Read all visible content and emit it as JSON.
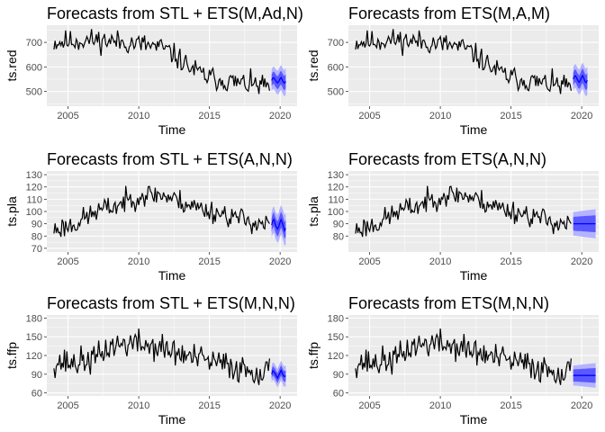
{
  "colors": {
    "panel_bg": "#ebebeb",
    "grid": "#ffffff",
    "series": "#000000",
    "forecast": "#0000ff",
    "band80": "#5959ff",
    "band95": "#b3b3ff"
  },
  "chart_data": [
    {
      "type": "line",
      "title": "Forecasts from STL +  ETS(M,Ad,N)",
      "xlabel": "Time",
      "ylabel": "ts.red",
      "xlim": [
        2003.5,
        2021.2
      ],
      "ylim": [
        440,
        770
      ],
      "xticks": [
        2005,
        2010,
        2015,
        2020
      ],
      "yticks": [
        500,
        600,
        700
      ],
      "grid": true,
      "legend": "none",
      "level_points": [
        [
          2004.0,
          700
        ],
        [
          2005.5,
          705
        ],
        [
          2007.0,
          710
        ],
        [
          2009.0,
          700
        ],
        [
          2010.5,
          690
        ],
        [
          2011.8,
          675
        ],
        [
          2012.8,
          635
        ],
        [
          2013.8,
          590
        ],
        [
          2014.8,
          560
        ],
        [
          2016.0,
          545
        ],
        [
          2017.0,
          535
        ],
        [
          2018.0,
          528
        ],
        [
          2019.3,
          520
        ]
      ],
      "noise": 40,
      "seed": 11,
      "forecast": {
        "start": 2019.4,
        "end": 2020.4,
        "mean": 545,
        "lo80": 30,
        "hi80": 30,
        "lo95": 55,
        "hi95": 55,
        "wiggle": 12
      }
    },
    {
      "type": "line",
      "title": "Forecasts from ETS(M,A,M)",
      "xlabel": "Time",
      "ylabel": "ts.red",
      "xlim": [
        2003.5,
        2021.2
      ],
      "ylim": [
        440,
        770
      ],
      "xticks": [
        2005,
        2010,
        2015,
        2020
      ],
      "yticks": [
        500,
        600,
        700
      ],
      "grid": true,
      "legend": "none",
      "level_points": [
        [
          2004.0,
          700
        ],
        [
          2005.5,
          705
        ],
        [
          2007.0,
          710
        ],
        [
          2009.0,
          700
        ],
        [
          2010.5,
          690
        ],
        [
          2011.8,
          675
        ],
        [
          2012.8,
          635
        ],
        [
          2013.8,
          590
        ],
        [
          2014.8,
          560
        ],
        [
          2016.0,
          545
        ],
        [
          2017.0,
          535
        ],
        [
          2018.0,
          528
        ],
        [
          2019.3,
          520
        ]
      ],
      "noise": 40,
      "seed": 11,
      "forecast": {
        "start": 2019.4,
        "end": 2020.4,
        "mean": 550,
        "lo80": 32,
        "hi80": 32,
        "lo95": 58,
        "hi95": 58,
        "wiggle": 15
      }
    },
    {
      "type": "line",
      "title": "Forecasts from STL +  ETS(A,N,N)",
      "xlabel": "Time",
      "ylabel": "ts.pla",
      "xlim": [
        2003.5,
        2021.2
      ],
      "ylim": [
        67,
        133
      ],
      "xticks": [
        2005,
        2010,
        2015,
        2020
      ],
      "yticks": [
        70,
        80,
        90,
        100,
        110,
        120,
        130
      ],
      "grid": true,
      "legend": "none",
      "level_points": [
        [
          2004.0,
          85
        ],
        [
          2005.5,
          90
        ],
        [
          2007.0,
          100
        ],
        [
          2008.5,
          105
        ],
        [
          2010.0,
          113
        ],
        [
          2011.5,
          114
        ],
        [
          2013.0,
          108
        ],
        [
          2014.5,
          102
        ],
        [
          2016.0,
          98
        ],
        [
          2017.5,
          93
        ],
        [
          2019.3,
          89
        ]
      ],
      "noise": 8,
      "seed": 23,
      "forecast": {
        "start": 2019.4,
        "end": 2020.4,
        "mean": 89,
        "lo80": 7,
        "hi80": 7,
        "lo95": 13,
        "hi95": 13,
        "wiggle": 4
      }
    },
    {
      "type": "line",
      "title": "Forecasts from ETS(A,N,N)",
      "xlabel": "Time",
      "ylabel": "ts.pla",
      "xlim": [
        2003.5,
        2021.2
      ],
      "ylim": [
        67,
        133
      ],
      "xticks": [
        2005,
        2010,
        2015,
        2020
      ],
      "yticks": [
        80,
        90,
        100,
        110,
        120,
        130
      ],
      "grid": true,
      "legend": "none",
      "level_points": [
        [
          2004.0,
          85
        ],
        [
          2005.5,
          90
        ],
        [
          2007.0,
          100
        ],
        [
          2008.5,
          105
        ],
        [
          2010.0,
          113
        ],
        [
          2011.5,
          114
        ],
        [
          2013.0,
          108
        ],
        [
          2014.5,
          102
        ],
        [
          2016.0,
          98
        ],
        [
          2017.5,
          93
        ],
        [
          2019.3,
          89
        ]
      ],
      "noise": 8,
      "seed": 23,
      "forecast": {
        "start": 2019.4,
        "end": 2021.0,
        "mean": 90,
        "lo80": 7,
        "hi80": 7,
        "lo95": 12,
        "hi95": 12,
        "wiggle": 0
      }
    },
    {
      "type": "line",
      "title": "Forecasts from STL +  ETS(M,N,N)",
      "xlabel": "Time",
      "ylabel": "ts.ffp",
      "xlim": [
        2003.5,
        2021.2
      ],
      "ylim": [
        55,
        185
      ],
      "xticks": [
        2005,
        2010,
        2015,
        2020
      ],
      "yticks": [
        60,
        90,
        120,
        150,
        180
      ],
      "grid": true,
      "legend": "none",
      "level_points": [
        [
          2004.0,
          110
        ],
        [
          2005.5,
          108
        ],
        [
          2007.0,
          115
        ],
        [
          2008.0,
          135
        ],
        [
          2009.5,
          140
        ],
        [
          2011.0,
          135
        ],
        [
          2012.5,
          125
        ],
        [
          2014.0,
          115
        ],
        [
          2015.5,
          108
        ],
        [
          2017.0,
          100
        ],
        [
          2019.3,
          92
        ]
      ],
      "noise": 20,
      "seed": 37,
      "forecast": {
        "start": 2019.4,
        "end": 2020.4,
        "mean": 90,
        "lo80": 9,
        "hi80": 9,
        "lo95": 17,
        "hi95": 17,
        "wiggle": 5
      }
    },
    {
      "type": "line",
      "title": "Forecasts from ETS(M,N,N)",
      "xlabel": "Time",
      "ylabel": "ts.ffp",
      "xlim": [
        2003.5,
        2021.2
      ],
      "ylim": [
        55,
        185
      ],
      "xticks": [
        2005,
        2010,
        2015,
        2020
      ],
      "yticks": [
        60,
        90,
        120,
        150,
        180
      ],
      "grid": true,
      "legend": "none",
      "level_points": [
        [
          2004.0,
          110
        ],
        [
          2005.5,
          108
        ],
        [
          2007.0,
          115
        ],
        [
          2008.0,
          135
        ],
        [
          2009.5,
          140
        ],
        [
          2011.0,
          135
        ],
        [
          2012.5,
          125
        ],
        [
          2014.0,
          115
        ],
        [
          2015.5,
          108
        ],
        [
          2017.0,
          100
        ],
        [
          2019.3,
          92
        ]
      ],
      "noise": 20,
      "seed": 37,
      "forecast": {
        "start": 2019.4,
        "end": 2021.0,
        "mean": 88,
        "lo80": 12,
        "hi80": 12,
        "lo95": 20,
        "hi95": 20,
        "wiggle": 0
      }
    }
  ]
}
